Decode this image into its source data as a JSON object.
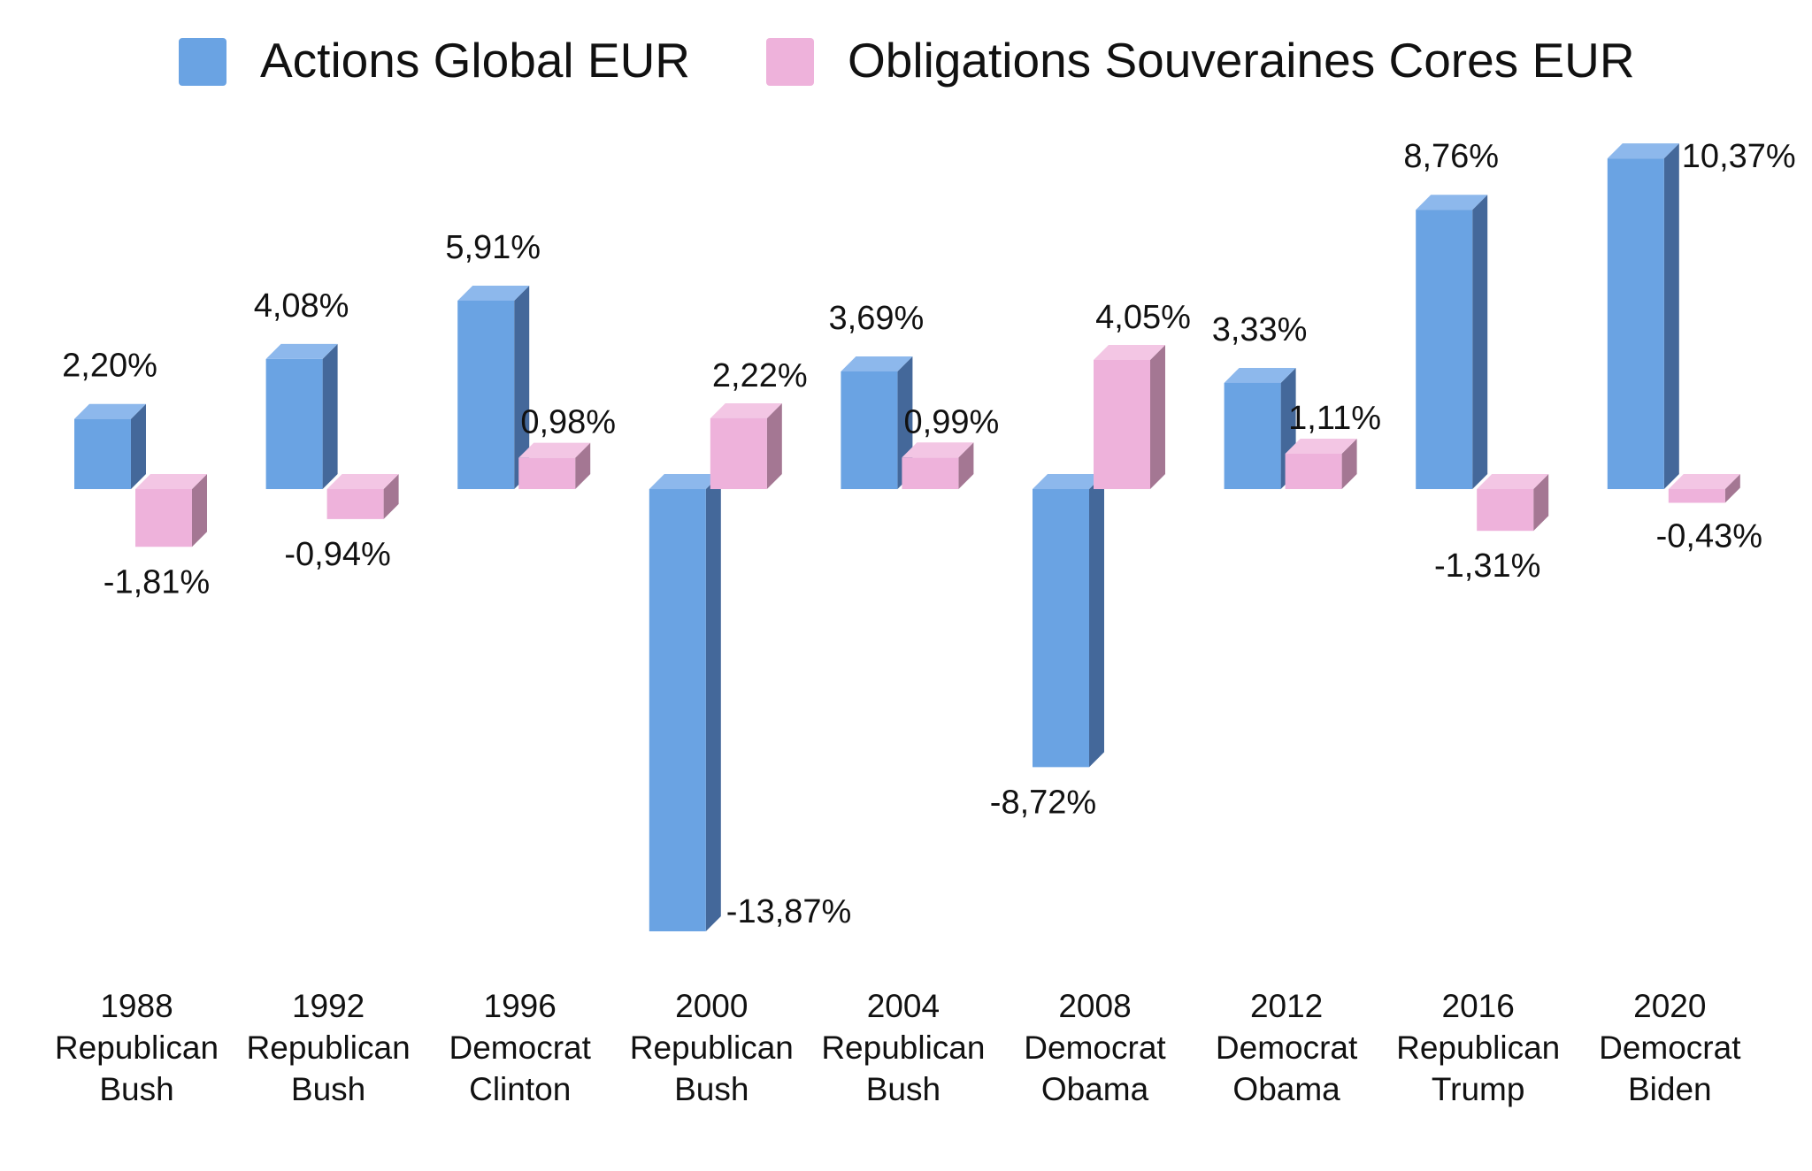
{
  "chart_data": {
    "type": "bar",
    "style": "3d-clustered-column",
    "title": "",
    "xlabel": "",
    "ylabel": "",
    "grid": false,
    "legend_position": "top",
    "ylim": [
      -15,
      11
    ],
    "categories": [
      [
        "1988",
        "Republican",
        "Bush"
      ],
      [
        "1992",
        "Republican",
        "Bush"
      ],
      [
        "1996",
        "Democrat",
        "Clinton"
      ],
      [
        "2000",
        "Republican",
        "Bush"
      ],
      [
        "2004",
        "Republican",
        "Bush"
      ],
      [
        "2008",
        "Democrat",
        "Obama"
      ],
      [
        "2012",
        "Democrat",
        "Obama"
      ],
      [
        "2016",
        "Republican",
        "Trump"
      ],
      [
        "2020",
        "Democrat",
        "Biden"
      ]
    ],
    "series": [
      {
        "name": "Actions Global EUR",
        "color": "#6aa3e3",
        "side_color": "#44689a",
        "top_color": "#8db8ec",
        "values": [
          2.2,
          4.08,
          5.91,
          -13.87,
          3.69,
          -8.72,
          3.33,
          8.76,
          10.37
        ],
        "labels": [
          "2,20%",
          "4,08%",
          "5,91%",
          "-13,87%",
          "3,69%",
          "-8,72%",
          "3,33%",
          "8,76%",
          "10,37%"
        ]
      },
      {
        "name": "Obligations Souveraines Cores EUR",
        "color": "#eeb2db",
        "side_color": "#a47793",
        "top_color": "#f3c6e4",
        "values": [
          -1.81,
          -0.94,
          0.98,
          2.22,
          0.99,
          4.05,
          1.11,
          -1.31,
          -0.43
        ],
        "labels": [
          "-1,81%",
          "-0,94%",
          "0,98%",
          "2,22%",
          "0,99%",
          "4,05%",
          "1,11%",
          "-1,31%",
          "-0,43%"
        ]
      }
    ]
  }
}
